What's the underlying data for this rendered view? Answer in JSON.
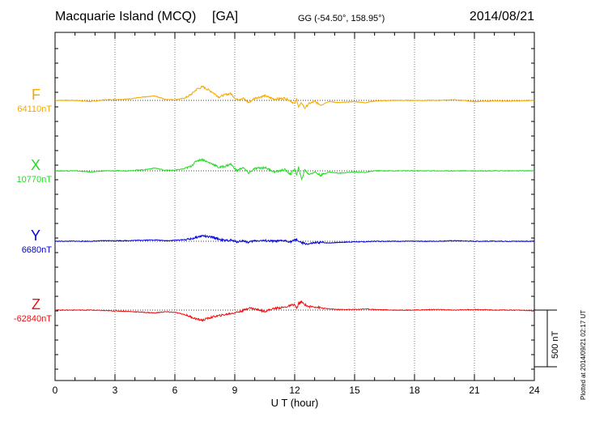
{
  "header": {
    "station": "Macquarie Island (MCQ)",
    "code": "[GA]",
    "coords": "GG (-54.50°, 158.95°)",
    "date": "2014/08/21"
  },
  "footer": {
    "xlabel": "U T (hour)",
    "plotted": "Plotted at 2014/09/21 02:17 UT",
    "scale": "500 nT"
  },
  "chart_data": {
    "type": "line",
    "title": "Macquarie Island (MCQ) [GA] 2014/08/21",
    "xlabel": "U T (hour)",
    "ylabel": "",
    "xlim": [
      0,
      24
    ],
    "xticks": [
      0,
      3,
      6,
      9,
      12,
      15,
      18,
      21,
      24
    ],
    "scale_bar_nT": 500,
    "grid": true,
    "series": [
      {
        "name": "F",
        "baseline_label": "64110nT",
        "color": "#f5a800",
        "x": [
          0,
          1,
          1.8,
          2.5,
          3.5,
          4.5,
          5,
          5.5,
          6,
          6.5,
          6.8,
          7.1,
          7.4,
          7.6,
          7.9,
          8.2,
          8.5,
          8.8,
          9.1,
          9.4,
          9.7,
          10,
          10.5,
          11,
          11.5,
          11.8,
          12.0,
          12.1,
          12.2,
          12.35,
          12.5,
          12.7,
          13,
          13.3,
          13.7,
          14.2,
          15,
          15.5,
          16,
          17,
          18,
          19,
          20,
          21,
          22,
          23,
          24
        ],
        "values": [
          0,
          0,
          -10,
          5,
          10,
          30,
          40,
          10,
          5,
          20,
          50,
          100,
          120,
          100,
          70,
          30,
          50,
          60,
          5,
          20,
          -20,
          20,
          40,
          10,
          20,
          -5,
          -30,
          10,
          -60,
          -20,
          -70,
          -30,
          -10,
          -40,
          -10,
          -20,
          -10,
          -20,
          -5,
          0,
          0,
          0,
          5,
          -10,
          -5,
          -5,
          0
        ]
      },
      {
        "name": "X",
        "baseline_label": "10770nT",
        "color": "#22dd22",
        "x": [
          0,
          1,
          1.8,
          2.5,
          3.5,
          4.5,
          5,
          5.5,
          6,
          6.5,
          6.8,
          7.1,
          7.4,
          7.6,
          7.9,
          8.2,
          8.5,
          8.8,
          9.1,
          9.4,
          9.7,
          10,
          10.5,
          11,
          11.5,
          11.8,
          12.0,
          12.1,
          12.2,
          12.35,
          12.5,
          12.7,
          13,
          13.3,
          13.7,
          14.2,
          15,
          15.5,
          16,
          17,
          18,
          19,
          20,
          21,
          22,
          23,
          24
        ],
        "values": [
          0,
          0,
          -10,
          0,
          0,
          10,
          25,
          5,
          5,
          20,
          40,
          90,
          100,
          80,
          60,
          30,
          40,
          60,
          0,
          30,
          -20,
          20,
          30,
          -10,
          10,
          -30,
          20,
          -40,
          30,
          -80,
          10,
          -30,
          -10,
          -40,
          -10,
          -20,
          -10,
          -15,
          0,
          0,
          0,
          0,
          0,
          0,
          0,
          0,
          0
        ]
      },
      {
        "name": "Y",
        "baseline_label": "6680nT",
        "color": "#0000dd",
        "x": [
          0,
          1,
          1.8,
          2.5,
          3.5,
          4.5,
          5,
          5.5,
          6,
          6.5,
          6.8,
          7.1,
          7.4,
          7.6,
          7.9,
          8.2,
          8.5,
          8.8,
          9.1,
          9.4,
          9.7,
          10,
          10.5,
          11,
          11.5,
          11.8,
          12.0,
          12.1,
          12.2,
          12.35,
          12.5,
          12.7,
          13,
          13.3,
          13.7,
          14.2,
          15,
          15.5,
          16,
          17,
          18,
          19,
          20,
          21,
          22,
          23,
          24
        ],
        "values": [
          0,
          0,
          0,
          5,
          5,
          10,
          12,
          5,
          8,
          15,
          20,
          35,
          50,
          40,
          35,
          20,
          5,
          10,
          -5,
          5,
          -10,
          5,
          5,
          0,
          5,
          -5,
          10,
          15,
          0,
          -15,
          -20,
          -25,
          -15,
          -10,
          -15,
          -10,
          -5,
          -5,
          0,
          0,
          0,
          0,
          5,
          0,
          0,
          0,
          0
        ]
      },
      {
        "name": "Z",
        "baseline_label": "-62840nT",
        "color": "#ee1111",
        "x": [
          0,
          1,
          1.8,
          2.5,
          3.5,
          4.5,
          5,
          5.5,
          6,
          6.5,
          6.8,
          7.1,
          7.4,
          7.6,
          7.9,
          8.2,
          8.5,
          8.8,
          9.1,
          9.4,
          9.7,
          10,
          10.5,
          11,
          11.5,
          11.8,
          12.0,
          12.1,
          12.2,
          12.35,
          12.5,
          12.7,
          13,
          13.3,
          13.7,
          14.2,
          15,
          15.5,
          16,
          17,
          18,
          19,
          20,
          21,
          22,
          23,
          24
        ],
        "values": [
          0,
          0,
          0,
          -5,
          -10,
          -20,
          -25,
          -15,
          -20,
          -40,
          -60,
          -80,
          -90,
          -75,
          -60,
          -50,
          -40,
          -30,
          -20,
          -5,
          20,
          10,
          -10,
          15,
          25,
          40,
          50,
          10,
          60,
          70,
          50,
          30,
          30,
          20,
          10,
          5,
          5,
          10,
          5,
          0,
          0,
          5,
          0,
          5,
          0,
          0,
          -5
        ]
      }
    ]
  }
}
